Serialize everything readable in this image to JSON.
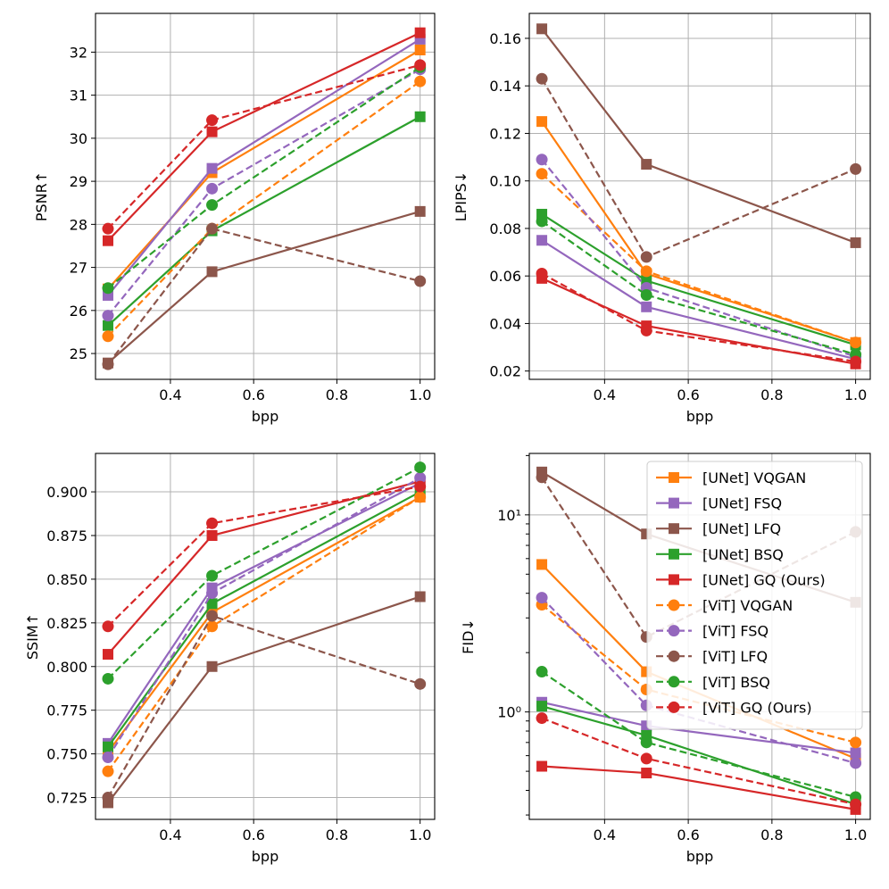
{
  "figure": {
    "layout": "2x2 grid of line charts"
  },
  "colors": {
    "VQGAN": "#ff7f0e",
    "FSQ": "#9467bd",
    "LFQ": "#8c564b",
    "BSQ": "#2ca02c",
    "GQ (Ours)": "#d62728",
    "grid": "#b0b0b0",
    "axis": "#000000"
  },
  "legend": {
    "entries": [
      "[UNet] VQGAN",
      "[UNet] FSQ",
      "[UNet] LFQ",
      "[UNet] BSQ",
      "[UNet] GQ (Ours)",
      "[ViT] VQGAN",
      "[ViT] FSQ",
      "[ViT] LFQ",
      "[ViT] BSQ",
      "[ViT] GQ (Ours)"
    ],
    "location": "upper-right of FID panel"
  },
  "chart_data": [
    {
      "id": "psnr",
      "type": "line",
      "ylabel": "PSNR↑",
      "xlabel": "bpp",
      "scale": "linear",
      "x": [
        0.25,
        0.5,
        1.0
      ],
      "xlim": [
        0.22,
        1.035
      ],
      "ylim": [
        24.4,
        32.9
      ],
      "xticks": [
        0.4,
        0.6,
        0.8,
        1.0
      ],
      "xtick_labels": [
        "0.4",
        "0.6",
        "0.8",
        "1.0"
      ],
      "yticks": [
        25,
        26,
        27,
        28,
        29,
        30,
        31,
        32
      ],
      "ytick_labels": [
        "25",
        "26",
        "27",
        "28",
        "29",
        "30",
        "31",
        "32"
      ],
      "series": [
        {
          "name": "[UNet] VQGAN",
          "method": "VQGAN",
          "arch": "UNet",
          "values": [
            26.5,
            29.2,
            32.05
          ]
        },
        {
          "name": "[UNet] FSQ",
          "method": "FSQ",
          "arch": "UNet",
          "values": [
            26.35,
            29.3,
            32.3
          ]
        },
        {
          "name": "[UNet] LFQ",
          "method": "LFQ",
          "arch": "UNet",
          "values": [
            24.78,
            26.9,
            28.3
          ]
        },
        {
          "name": "[UNet] BSQ",
          "method": "BSQ",
          "arch": "UNet",
          "values": [
            25.65,
            27.85,
            30.5
          ]
        },
        {
          "name": "[UNet] GQ (Ours)",
          "method": "GQ (Ours)",
          "arch": "UNet",
          "values": [
            27.62,
            30.15,
            32.45
          ]
        },
        {
          "name": "[ViT] VQGAN",
          "method": "VQGAN",
          "arch": "ViT",
          "values": [
            25.4,
            27.9,
            31.32
          ]
        },
        {
          "name": "[ViT] FSQ",
          "method": "FSQ",
          "arch": "ViT",
          "values": [
            25.88,
            28.83,
            31.6
          ]
        },
        {
          "name": "[ViT] LFQ",
          "method": "LFQ",
          "arch": "ViT",
          "values": [
            24.75,
            27.9,
            26.68
          ]
        },
        {
          "name": "[ViT] BSQ",
          "method": "BSQ",
          "arch": "ViT",
          "values": [
            26.52,
            28.45,
            31.65
          ]
        },
        {
          "name": "[ViT] GQ (Ours)",
          "method": "GQ (Ours)",
          "arch": "ViT",
          "values": [
            27.9,
            30.42,
            31.7
          ]
        }
      ]
    },
    {
      "id": "lpips",
      "type": "line",
      "ylabel": "LPIPS↓",
      "xlabel": "bpp",
      "scale": "linear",
      "x": [
        0.25,
        0.5,
        1.0
      ],
      "xlim": [
        0.22,
        1.035
      ],
      "ylim": [
        0.0165,
        0.1705
      ],
      "xticks": [
        0.4,
        0.6,
        0.8,
        1.0
      ],
      "xtick_labels": [
        "0.4",
        "0.6",
        "0.8",
        "1.0"
      ],
      "yticks": [
        0.02,
        0.04,
        0.06,
        0.08,
        0.1,
        0.12,
        0.14,
        0.16
      ],
      "ytick_labels": [
        "0.02",
        "0.04",
        "0.06",
        "0.08",
        "0.10",
        "0.12",
        "0.14",
        "0.16"
      ],
      "series": [
        {
          "name": "[UNet] VQGAN",
          "method": "VQGAN",
          "arch": "UNet",
          "values": [
            0.125,
            0.061,
            0.032
          ]
        },
        {
          "name": "[UNet] FSQ",
          "method": "FSQ",
          "arch": "UNet",
          "values": [
            0.075,
            0.047,
            0.025
          ]
        },
        {
          "name": "[UNet] LFQ",
          "method": "LFQ",
          "arch": "UNet",
          "values": [
            0.164,
            0.107,
            0.074
          ]
        },
        {
          "name": "[UNet] BSQ",
          "method": "BSQ",
          "arch": "UNet",
          "values": [
            0.086,
            0.058,
            0.031
          ]
        },
        {
          "name": "[UNet] GQ (Ours)",
          "method": "GQ (Ours)",
          "arch": "UNet",
          "values": [
            0.059,
            0.039,
            0.023
          ]
        },
        {
          "name": "[ViT] VQGAN",
          "method": "VQGAN",
          "arch": "ViT",
          "values": [
            0.103,
            0.062,
            0.032
          ]
        },
        {
          "name": "[ViT] FSQ",
          "method": "FSQ",
          "arch": "ViT",
          "values": [
            0.109,
            0.055,
            0.026
          ]
        },
        {
          "name": "[ViT] LFQ",
          "method": "LFQ",
          "arch": "ViT",
          "values": [
            0.143,
            0.068,
            0.105
          ]
        },
        {
          "name": "[ViT] BSQ",
          "method": "BSQ",
          "arch": "ViT",
          "values": [
            0.083,
            0.052,
            0.027
          ]
        },
        {
          "name": "[ViT] GQ (Ours)",
          "method": "GQ (Ours)",
          "arch": "ViT",
          "values": [
            0.061,
            0.037,
            0.024
          ]
        }
      ]
    },
    {
      "id": "ssim",
      "type": "line",
      "ylabel": "SSIM↑",
      "xlabel": "bpp",
      "scale": "linear",
      "x": [
        0.25,
        0.5,
        1.0
      ],
      "xlim": [
        0.22,
        1.035
      ],
      "ylim": [
        0.7125,
        0.922
      ],
      "xticks": [
        0.4,
        0.6,
        0.8,
        1.0
      ],
      "xtick_labels": [
        "0.4",
        "0.6",
        "0.8",
        "1.0"
      ],
      "yticks": [
        0.725,
        0.75,
        0.775,
        0.8,
        0.825,
        0.85,
        0.875,
        0.9
      ],
      "ytick_labels": [
        "0.725",
        "0.750",
        "0.775",
        "0.800",
        "0.825",
        "0.850",
        "0.875",
        "0.900"
      ],
      "series": [
        {
          "name": "[UNet] VQGAN",
          "method": "VQGAN",
          "arch": "UNet",
          "values": [
            0.751,
            0.831,
            0.897
          ]
        },
        {
          "name": "[UNet] FSQ",
          "method": "FSQ",
          "arch": "UNet",
          "values": [
            0.756,
            0.845,
            0.905
          ]
        },
        {
          "name": "[UNet] LFQ",
          "method": "LFQ",
          "arch": "UNet",
          "values": [
            0.722,
            0.8,
            0.84
          ]
        },
        {
          "name": "[UNet] BSQ",
          "method": "BSQ",
          "arch": "UNet",
          "values": [
            0.754,
            0.836,
            0.9
          ]
        },
        {
          "name": "[UNet] GQ (Ours)",
          "method": "GQ (Ours)",
          "arch": "UNet",
          "values": [
            0.807,
            0.875,
            0.906
          ]
        },
        {
          "name": "[ViT] VQGAN",
          "method": "VQGAN",
          "arch": "ViT",
          "values": [
            0.74,
            0.823,
            0.897
          ]
        },
        {
          "name": "[ViT] FSQ",
          "method": "FSQ",
          "arch": "ViT",
          "values": [
            0.748,
            0.842,
            0.908
          ]
        },
        {
          "name": "[ViT] LFQ",
          "method": "LFQ",
          "arch": "ViT",
          "values": [
            0.725,
            0.829,
            0.79
          ]
        },
        {
          "name": "[ViT] BSQ",
          "method": "BSQ",
          "arch": "ViT",
          "values": [
            0.793,
            0.852,
            0.914
          ]
        },
        {
          "name": "[ViT] GQ (Ours)",
          "method": "GQ (Ours)",
          "arch": "ViT",
          "values": [
            0.823,
            0.882,
            0.903
          ]
        }
      ]
    },
    {
      "id": "fid",
      "type": "line",
      "ylabel": "FID↓",
      "xlabel": "bpp",
      "scale": "log",
      "x": [
        0.25,
        0.5,
        1.0
      ],
      "xlim": [
        0.22,
        1.035
      ],
      "ylim": [
        0.285,
        20.5
      ],
      "xticks": [
        0.4,
        0.6,
        0.8,
        1.0
      ],
      "xtick_labels": [
        "0.4",
        "0.6",
        "0.8",
        "1.0"
      ],
      "yticks": [
        1,
        10
      ],
      "ytick_labels": [
        "10⁰",
        "10¹"
      ],
      "series": [
        {
          "name": "[UNet] VQGAN",
          "method": "VQGAN",
          "arch": "UNet",
          "values": [
            5.6,
            1.6,
            0.58
          ]
        },
        {
          "name": "[UNet] FSQ",
          "method": "FSQ",
          "arch": "UNet",
          "values": [
            1.12,
            0.85,
            0.62
          ]
        },
        {
          "name": "[UNet] LFQ",
          "method": "LFQ",
          "arch": "UNet",
          "values": [
            16.5,
            8.0,
            3.6
          ]
        },
        {
          "name": "[UNet] BSQ",
          "method": "BSQ",
          "arch": "UNet",
          "values": [
            1.07,
            0.76,
            0.34
          ]
        },
        {
          "name": "[UNet] GQ (Ours)",
          "method": "GQ (Ours)",
          "arch": "UNet",
          "values": [
            0.53,
            0.49,
            0.32
          ]
        },
        {
          "name": "[ViT] VQGAN",
          "method": "VQGAN",
          "arch": "ViT",
          "values": [
            3.5,
            1.3,
            0.7
          ]
        },
        {
          "name": "[ViT] FSQ",
          "method": "FSQ",
          "arch": "ViT",
          "values": [
            3.8,
            1.08,
            0.55
          ]
        },
        {
          "name": "[ViT] LFQ",
          "method": "LFQ",
          "arch": "ViT",
          "values": [
            15.5,
            2.4,
            8.2
          ]
        },
        {
          "name": "[ViT] BSQ",
          "method": "BSQ",
          "arch": "ViT",
          "values": [
            1.6,
            0.7,
            0.37
          ]
        },
        {
          "name": "[ViT] GQ (Ours)",
          "method": "GQ (Ours)",
          "arch": "ViT",
          "values": [
            0.93,
            0.58,
            0.34
          ]
        }
      ]
    }
  ]
}
